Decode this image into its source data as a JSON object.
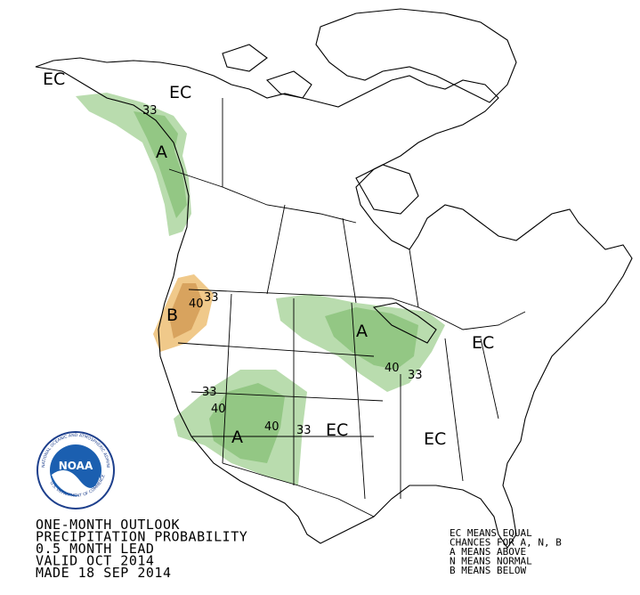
{
  "title_lines": [
    "ONE-MONTH OUTLOOK",
    "PRECIPITATION PROBABILITY",
    "0.5 MONTH LEAD",
    "VALID OCT 2014",
    "MADE 18 SEP 2014"
  ],
  "legend_lines": [
    "EC MEANS EQUAL",
    "CHANCES FOR A, N, B",
    "A MEANS ABOVE",
    "N MEANS NORMAL",
    "B MEANS BELOW"
  ],
  "logo": {
    "text": "NOAA",
    "ring_top": "NATIONAL OCEANIC AND ATMOSPHERIC ADMINISTRATION",
    "ring_bottom": "U.S. DEPARTMENT OF COMMERCE"
  },
  "map_labels": [
    "EC",
    "EC",
    "33",
    "A",
    "B",
    "40",
    "33",
    "A",
    "40",
    "33",
    "EC",
    "33",
    "40",
    "A",
    "40",
    "33",
    "EC",
    "EC"
  ]
}
